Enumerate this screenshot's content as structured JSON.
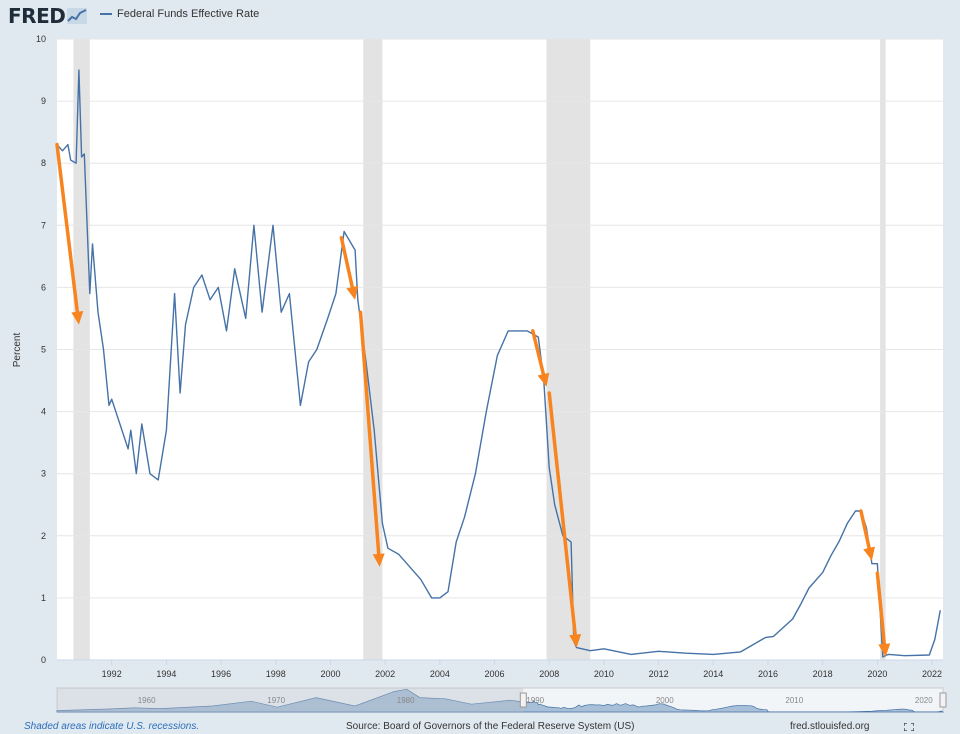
{
  "header": {
    "logo_text": "FRED",
    "legend_label": "Federal Funds Effective Rate"
  },
  "footer": {
    "recession_note": "Shaded areas indicate U.S. recessions.",
    "source": "Source: Board of Governors of the Federal Reserve System (US)",
    "site": "fred.stlouisfed.org"
  },
  "colors": {
    "series": "#4572a7",
    "arrows": "#f7841f",
    "recession": "#e3e3e3",
    "background": "#e1e9f0"
  },
  "chart_data": {
    "type": "line",
    "title": "",
    "xlabel": "",
    "ylabel": "Percent",
    "xlim": [
      1990,
      2022.4
    ],
    "ylim": [
      0,
      10
    ],
    "yticks": [
      "0",
      "1",
      "2",
      "3",
      "4",
      "5",
      "6",
      "7",
      "8",
      "9",
      "10"
    ],
    "xticks": [
      "1992",
      "1994",
      "1996",
      "1998",
      "2000",
      "2002",
      "2004",
      "2006",
      "2008",
      "2010",
      "2012",
      "2014",
      "2016",
      "2018",
      "2020",
      "2022"
    ],
    "grid": true,
    "legend": "top-left",
    "recessions": [
      [
        1990.6,
        1991.2
      ],
      [
        2001.2,
        2001.9
      ],
      [
        2007.9,
        2009.5
      ],
      [
        2020.1,
        2020.3
      ]
    ],
    "series": [
      {
        "name": "Federal Funds Effective Rate",
        "x": [
          1990.0,
          1990.2,
          1990.4,
          1990.5,
          1990.7,
          1990.8,
          1990.9,
          1991.0,
          1991.2,
          1991.3,
          1991.5,
          1991.7,
          1991.9,
          1992.0,
          1992.3,
          1992.6,
          1992.7,
          1992.9,
          1993.1,
          1993.4,
          1993.7,
          1994.0,
          1994.3,
          1994.5,
          1994.7,
          1995.0,
          1995.3,
          1995.6,
          1995.9,
          1996.2,
          1996.5,
          1996.9,
          1997.2,
          1997.5,
          1997.9,
          1998.2,
          1998.5,
          1998.9,
          1999.2,
          1999.5,
          1999.9,
          2000.2,
          2000.5,
          2000.9,
          2001.0,
          2001.3,
          2001.6,
          2001.9,
          2002.1,
          2002.5,
          2002.9,
          2003.3,
          2003.7,
          2004.0,
          2004.3,
          2004.6,
          2004.9,
          2005.3,
          2005.7,
          2006.1,
          2006.5,
          2006.8,
          2007.2,
          2007.6,
          2007.8,
          2008.0,
          2008.2,
          2008.5,
          2008.8,
          2008.9,
          2009.0,
          2009.5,
          2010.0,
          2011.0,
          2012.0,
          2013.0,
          2014.0,
          2015.0,
          2015.9,
          2016.2,
          2016.9,
          2017.2,
          2017.5,
          2018.0,
          2018.3,
          2018.6,
          2018.9,
          2019.2,
          2019.4,
          2019.6,
          2019.8,
          2020.0,
          2020.2,
          2020.4,
          2021.0,
          2021.9,
          2022.1,
          2022.3
        ],
        "y": [
          8.3,
          8.2,
          8.3,
          8.05,
          8.0,
          9.5,
          8.1,
          8.15,
          5.9,
          6.7,
          5.6,
          5.0,
          4.1,
          4.2,
          3.8,
          3.4,
          3.7,
          3.0,
          3.8,
          3.0,
          2.9,
          3.7,
          5.9,
          4.3,
          5.4,
          6.0,
          6.2,
          5.8,
          6.0,
          5.3,
          6.3,
          5.5,
          7.0,
          5.6,
          7.0,
          5.6,
          5.9,
          4.1,
          4.8,
          5.0,
          5.5,
          5.9,
          6.9,
          6.6,
          5.8,
          4.8,
          3.7,
          2.2,
          1.8,
          1.7,
          1.5,
          1.3,
          1.0,
          1.0,
          1.1,
          1.9,
          2.3,
          3.0,
          4.0,
          4.9,
          5.3,
          5.3,
          5.3,
          5.2,
          4.5,
          3.1,
          2.5,
          2.0,
          1.9,
          0.3,
          0.2,
          0.15,
          0.18,
          0.09,
          0.14,
          0.11,
          0.09,
          0.13,
          0.36,
          0.38,
          0.66,
          0.9,
          1.16,
          1.41,
          1.68,
          1.91,
          2.2,
          2.4,
          2.4,
          2.13,
          1.55,
          1.55,
          0.05,
          0.09,
          0.07,
          0.08,
          0.33,
          0.8
        ]
      }
    ],
    "annotations": [
      {
        "from": [
          1990.0,
          8.3
        ],
        "to": [
          1990.8,
          5.4
        ]
      },
      {
        "from": [
          2000.4,
          6.8
        ],
        "to": [
          2000.9,
          5.8
        ]
      },
      {
        "from": [
          2001.1,
          5.6
        ],
        "to": [
          2001.8,
          1.5
        ]
      },
      {
        "from": [
          2007.4,
          5.3
        ],
        "to": [
          2007.9,
          4.4
        ]
      },
      {
        "from": [
          2008.0,
          4.3
        ],
        "to": [
          2009.0,
          0.2
        ]
      },
      {
        "from": [
          2019.4,
          2.4
        ],
        "to": [
          2019.8,
          1.6
        ]
      },
      {
        "from": [
          2020.0,
          1.4
        ],
        "to": [
          2020.3,
          0.05
        ]
      }
    ],
    "navigator": {
      "range": [
        1954,
        2022.4
      ],
      "labels": [
        "1960",
        "1970",
        "1980",
        "1990",
        "2000",
        "2010",
        "2020"
      ]
    }
  }
}
